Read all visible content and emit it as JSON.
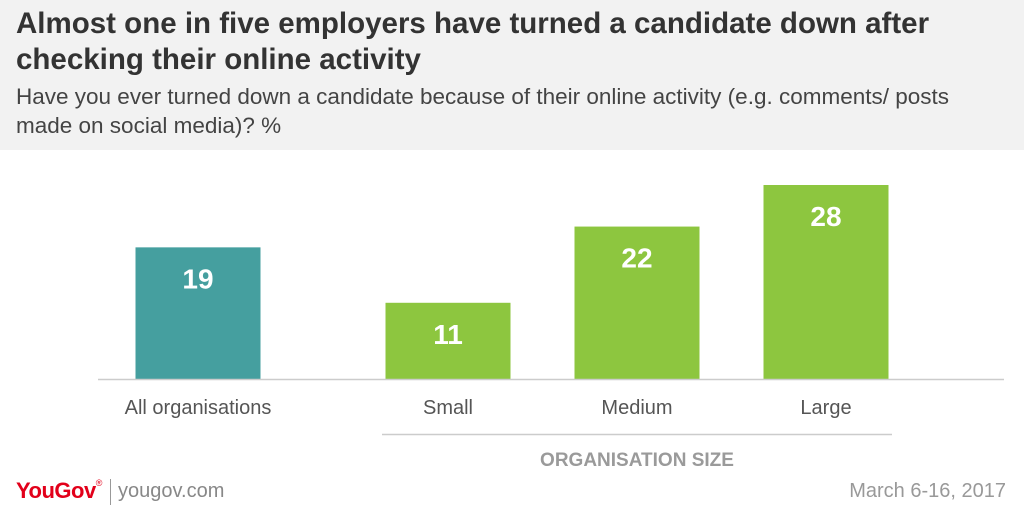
{
  "header": {
    "title": "Almost one in five employers have turned a candidate down after checking their online activity",
    "subtitle": "Have you ever turned down a candidate because of their online activity (e.g. comments/ posts made on social media)? %"
  },
  "colors": {
    "total_bar": "#459f9f",
    "size_bar": "#8dc63f",
    "value_label": "#ffffff",
    "category_label": "#555555",
    "group_label": "#9a9a9a"
  },
  "chart_data": {
    "type": "bar",
    "title": "Almost one in five employers have turned a candidate down after checking their online activity",
    "subtitle": "Have you ever turned down a candidate because of their online activity (e.g. comments/ posts made on social media)? %",
    "categories": [
      "All organisations",
      "Small",
      "Medium",
      "Large"
    ],
    "values": [
      19,
      11,
      22,
      28
    ],
    "groups": [
      {
        "label": "",
        "categories": [
          "All organisations"
        ]
      },
      {
        "label": "ORGANISATION SIZE",
        "categories": [
          "Small",
          "Medium",
          "Large"
        ]
      }
    ],
    "xlabel": "",
    "ylabel": "%",
    "ylim": [
      0,
      30
    ],
    "grid": false
  },
  "footer": {
    "brand": "YouGov",
    "brand_mark": "®",
    "url": "yougov.com",
    "date": "March 6-16, 2017"
  }
}
